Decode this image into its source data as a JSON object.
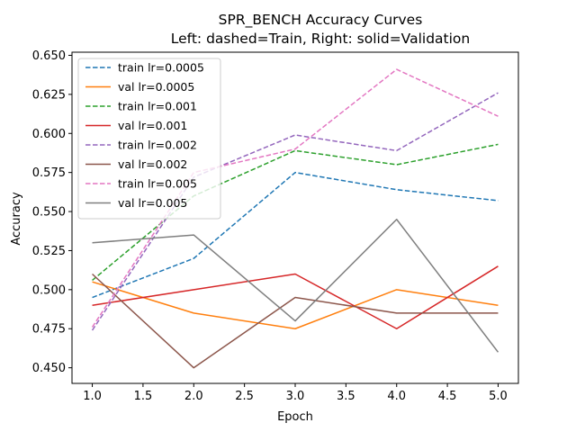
{
  "chart_data": {
    "type": "line",
    "title": "SPR_BENCH Accuracy Curves",
    "subtitle": "Left: dashed=Train, Right: solid=Validation",
    "xlabel": "Epoch",
    "ylabel": "Accuracy",
    "xlim": [
      0.8,
      5.2
    ],
    "ylim": [
      0.44,
      0.652
    ],
    "xticks": [
      "1.0",
      "1.5",
      "2.0",
      "2.5",
      "3.0",
      "3.5",
      "4.0",
      "4.5",
      "5.0"
    ],
    "yticks": [
      "0.450",
      "0.475",
      "0.500",
      "0.525",
      "0.550",
      "0.575",
      "0.600",
      "0.625",
      "0.650"
    ],
    "grid": false,
    "legend_position": "top-left",
    "x": [
      1,
      2,
      3,
      4,
      5
    ],
    "series": [
      {
        "name": "train lr=0.0005",
        "style": "dashed",
        "color": "#1f77b4",
        "values": [
          0.495,
          0.52,
          0.575,
          0.564,
          0.557
        ]
      },
      {
        "name": "val lr=0.0005",
        "style": "solid",
        "color": "#ff7f0e",
        "values": [
          0.505,
          0.485,
          0.475,
          0.5,
          0.49
        ]
      },
      {
        "name": "train lr=0.001",
        "style": "dashed",
        "color": "#2ca02c",
        "values": [
          0.506,
          0.56,
          0.589,
          0.58,
          0.593
        ]
      },
      {
        "name": "val lr=0.001",
        "style": "solid",
        "color": "#d62728",
        "values": [
          0.49,
          0.5,
          0.51,
          0.475,
          0.515
        ]
      },
      {
        "name": "train lr=0.002",
        "style": "dashed",
        "color": "#9467bd",
        "values": [
          0.474,
          0.572,
          0.599,
          0.589,
          0.626
        ]
      },
      {
        "name": "val lr=0.002",
        "style": "solid",
        "color": "#8c564b",
        "values": [
          0.51,
          0.45,
          0.495,
          0.485,
          0.485
        ]
      },
      {
        "name": "train lr=0.005",
        "style": "dashed",
        "color": "#e377c2",
        "values": [
          0.476,
          0.575,
          0.59,
          0.641,
          0.611
        ]
      },
      {
        "name": "val lr=0.005",
        "style": "solid",
        "color": "#7f7f7f",
        "values": [
          0.53,
          0.535,
          0.48,
          0.545,
          0.46
        ]
      }
    ]
  }
}
